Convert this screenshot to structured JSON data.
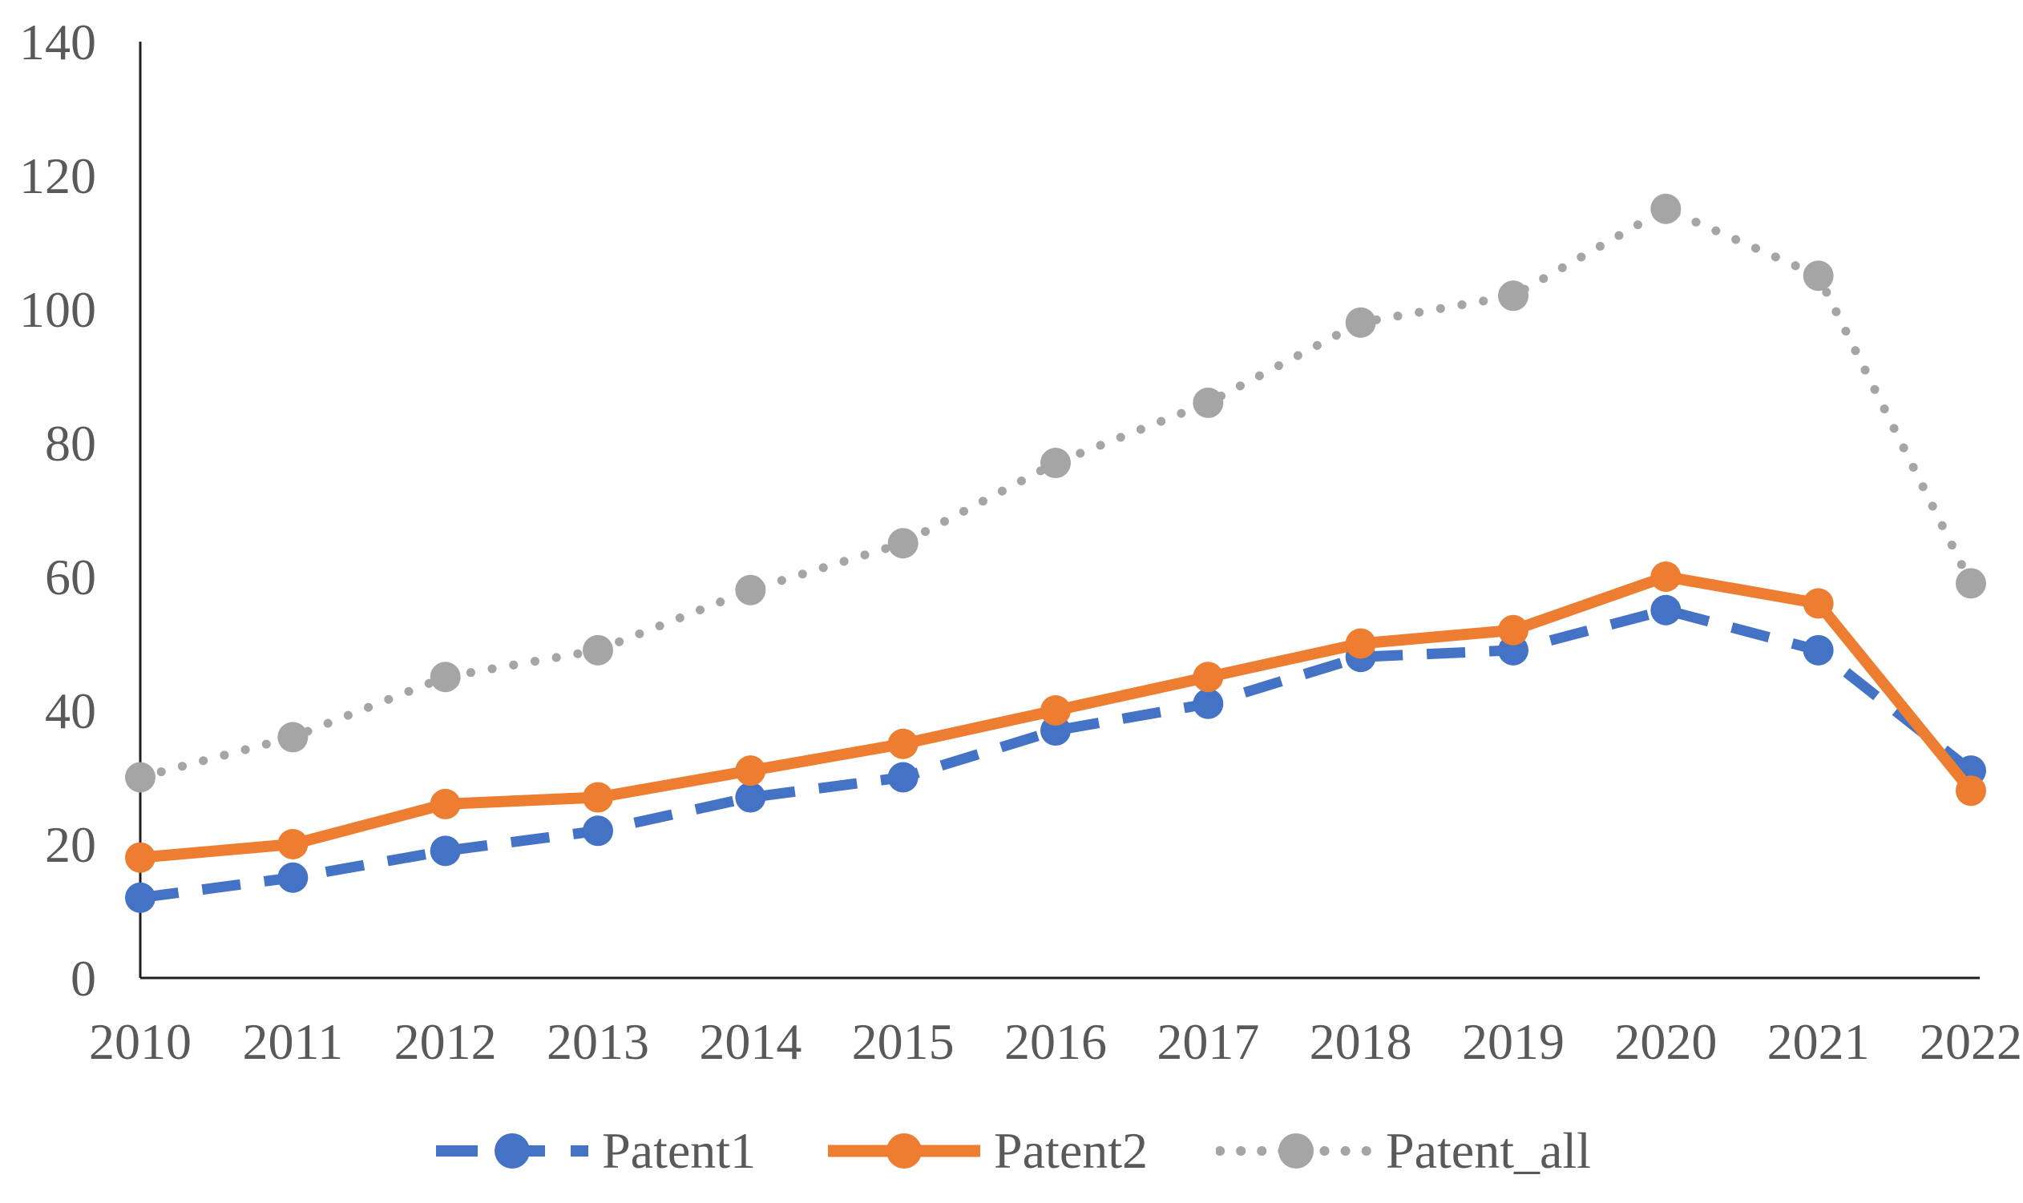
{
  "figure": {
    "background_color": "#ffffff",
    "text_color": "#595959",
    "axis_line_color": "#1f1f1f"
  },
  "axes": {
    "y_tick_labels": [
      "0",
      "20",
      "40",
      "60",
      "80",
      "100",
      "120",
      "140"
    ],
    "x_tick_labels": [
      "2010",
      "2011",
      "2012",
      "2013",
      "2014",
      "2015",
      "2016",
      "2017",
      "2018",
      "2019",
      "2020",
      "2021",
      "2022"
    ]
  },
  "legend": {
    "position": "bottom",
    "items": [
      {
        "label": "Patent1",
        "color": "#4472C4",
        "line_style": "dashed",
        "marker": "circle"
      },
      {
        "label": "Patent2",
        "color": "#ED7D31",
        "line_style": "solid",
        "marker": "circle"
      },
      {
        "label": "Patent_all",
        "color": "#A5A5A5",
        "line_style": "dotted",
        "marker": "circle"
      }
    ]
  },
  "chart_data": {
    "type": "line",
    "title": "",
    "xlabel": "",
    "ylabel": "",
    "x": [
      "2010",
      "2011",
      "2012",
      "2013",
      "2014",
      "2015",
      "2016",
      "2017",
      "2018",
      "2019",
      "2020",
      "2021",
      "2022"
    ],
    "series": [
      {
        "name": "Patent1",
        "color": "#4472C4",
        "line_style": "dashed",
        "marker": "circle",
        "values": [
          12,
          15,
          19,
          22,
          27,
          30,
          37,
          41,
          48,
          49,
          55,
          49,
          31
        ]
      },
      {
        "name": "Patent2",
        "color": "#ED7D31",
        "line_style": "solid",
        "marker": "circle",
        "values": [
          18,
          20,
          26,
          27,
          31,
          35,
          40,
          45,
          50,
          52,
          60,
          56,
          28
        ]
      },
      {
        "name": "Patent_all",
        "color": "#A5A5A5",
        "line_style": "dotted",
        "marker": "circle",
        "values": [
          30,
          36,
          45,
          49,
          58,
          65,
          77,
          86,
          98,
          102,
          115,
          105,
          59
        ]
      }
    ],
    "ylim": [
      0,
      140
    ],
    "ytick_step": 20,
    "grid": false,
    "legend_position": "bottom"
  }
}
